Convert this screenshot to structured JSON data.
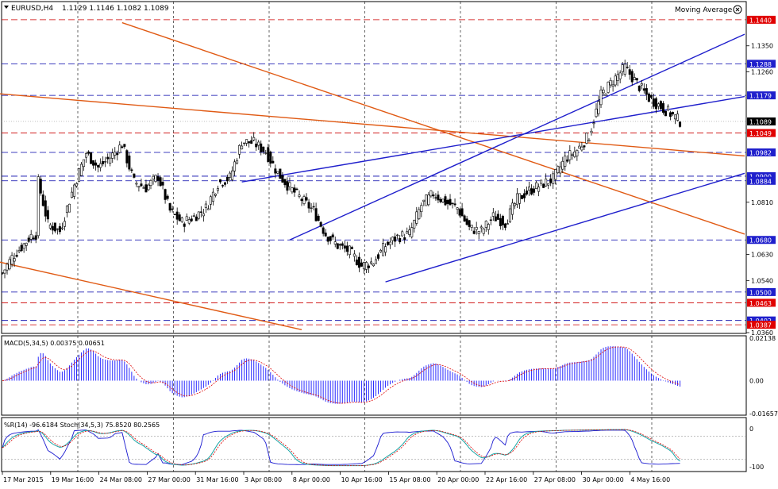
{
  "header": {
    "symbol_label": "EURUSD,H4",
    "ohlc": "1.1129 1.1146 1.1082 1.1089",
    "indicator_label": "Moving Average"
  },
  "colors": {
    "candle": "#000000",
    "grid": "#000000",
    "blue_level": "#0000aa",
    "red_level": "#cc0000",
    "channel_blue": "#1f1fcc",
    "channel_orange": "#e05a14",
    "price_tag_bg": "#1f1fcc",
    "price_tag_red": "#e00000",
    "price_tag_current": "#000000",
    "macd_hist": "#2a2aff",
    "macd_signal": "#dd0000",
    "wpr_line": "#1a1ad0",
    "stoch_main": "#18a6a6",
    "stoch_signal": "#dd0000"
  },
  "chart_data": [
    {
      "type": "line",
      "name_label": "EURUSD,H4",
      "ylim": [
        1.036,
        1.15
      ],
      "y_ticks": [
        "1.1350",
        "1.1260",
        "1.0810",
        "1.0630",
        "1.0540",
        "1.0360"
      ],
      "x_ticks": [
        "17 Mar 2015",
        "19 Mar 16:00",
        "24 Mar 08:00",
        "27 Mar 00:00",
        "31 Mar 16:00",
        "3 Apr 08:00",
        "8 Apr 00:00",
        "10 Apr 16:00",
        "15 Apr 08:00",
        "20 Apr 00:00",
        "22 Apr 16:00",
        "27 Apr 08:00",
        "30 Apr 00:00",
        "4 May 16:00"
      ],
      "vertical_separators": 7,
      "price_levels": [
        {
          "value": "1.1440",
          "color": "red"
        },
        {
          "value": "1.1288",
          "color": "blue"
        },
        {
          "value": "1.1179",
          "color": "blue"
        },
        {
          "value": "1.1049",
          "color": "red"
        },
        {
          "value": "1.0982",
          "color": "blue"
        },
        {
          "value": "1.0900",
          "color": "blue"
        },
        {
          "value": "1.0884",
          "color": "blue"
        },
        {
          "value": "1.0680",
          "color": "blue"
        },
        {
          "value": "1.0500",
          "color": "blue"
        },
        {
          "value": "1.0463",
          "color": "red"
        },
        {
          "value": "1.0402",
          "color": "blue"
        },
        {
          "value": "1.0387",
          "color": "red"
        }
      ],
      "current_price": "1.1089",
      "close_path": [
        [
          0,
          1.0565
        ],
        [
          4,
          1.062
        ],
        [
          9,
          1.0665
        ],
        [
          12,
          1.0695
        ],
        [
          14,
          1.07
        ],
        [
          15,
          1.088
        ],
        [
          19,
          1.0735
        ],
        [
          24,
          1.071
        ],
        [
          30,
          1.087
        ],
        [
          35,
          1.098
        ],
        [
          40,
          1.093
        ],
        [
          45,
          1.0965
        ],
        [
          50,
          1.101
        ],
        [
          55,
          1.088
        ],
        [
          60,
          1.086
        ],
        [
          65,
          1.09
        ],
        [
          70,
          1.078
        ],
        [
          75,
          1.074
        ],
        [
          80,
          1.076
        ],
        [
          85,
          1.079
        ],
        [
          90,
          1.0875
        ],
        [
          95,
          1.0895
        ],
        [
          100,
          1.102
        ],
        [
          105,
          1.1015
        ],
        [
          110,
          1.0985
        ],
        [
          115,
          1.091
        ],
        [
          120,
          1.086
        ],
        [
          125,
          1.082
        ],
        [
          130,
          1.078
        ],
        [
          135,
          1.07
        ],
        [
          140,
          1.066
        ],
        [
          145,
          1.064
        ],
        [
          150,
          1.059
        ],
        [
          155,
          1.0605
        ],
        [
          160,
          1.066
        ],
        [
          165,
          1.069
        ],
        [
          170,
          1.07
        ],
        [
          175,
          1.08
        ],
        [
          180,
          1.084
        ],
        [
          185,
          1.081
        ],
        [
          190,
          1.079
        ],
        [
          195,
          1.072
        ],
        [
          200,
          1.071
        ],
        [
          205,
          1.076
        ],
        [
          210,
          1.074
        ],
        [
          215,
          1.082
        ],
        [
          220,
          1.085
        ],
        [
          225,
          1.087
        ],
        [
          230,
          1.089
        ],
        [
          235,
          1.096
        ],
        [
          240,
          1.099
        ],
        [
          245,
          1.104
        ],
        [
          250,
          1.118
        ],
        [
          255,
          1.123
        ],
        [
          260,
          1.1275
        ],
        [
          265,
          1.122
        ],
        [
          270,
          1.117
        ],
        [
          275,
          1.114
        ],
        [
          280,
          1.111
        ],
        [
          283,
          1.1089
        ]
      ],
      "channels": [
        {
          "color": "orange",
          "x1": [
            -2,
            1.1185
          ],
          "x2": [
            310,
            1.097
          ]
        },
        {
          "color": "orange",
          "x1": [
            50,
            1.143
          ],
          "x2": [
            310,
            1.07
          ]
        },
        {
          "color": "orange",
          "x1": [
            -2,
            1.0605
          ],
          "x2": [
            125,
            1.037
          ]
        },
        {
          "color": "blue",
          "x1": [
            120,
            1.068
          ],
          "x2": [
            310,
            1.139
          ]
        },
        {
          "color": "blue",
          "x1": [
            160,
            1.0535
          ],
          "x2": [
            310,
            1.091
          ]
        },
        {
          "color": "blue",
          "x1": [
            100,
            1.088
          ],
          "x2": [
            310,
            1.1175
          ]
        }
      ]
    },
    {
      "type": "bar",
      "name_label": "MACD(5,34,5) 0.00375 0.00651",
      "y_ticks": [
        "0.02138",
        "0.00",
        "-0.01657"
      ],
      "ylim": [
        -0.01657,
        0.02138
      ]
    },
    {
      "type": "line",
      "name_label": "%R(14) -96.6184  Stoch(34,5,3) 75.8520 80.2565",
      "y_ticks": [
        "0",
        "-100"
      ],
      "ylim": [
        -100,
        0
      ]
    }
  ]
}
